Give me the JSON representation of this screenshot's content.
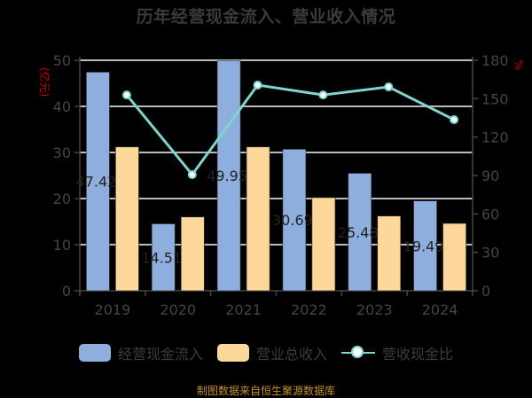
{
  "title": "历年经营现金流入、营业收入情况",
  "source": "制图数据来自恒生聚源数据库",
  "colors": {
    "cash_inflow": "#8eaedd",
    "revenue": "#fdd89a",
    "ratio_line": "#7fd4d0",
    "grid": "#bbbbbb",
    "axis": "#444444",
    "unit": "#d40000",
    "source": "#c8902a"
  },
  "axes": {
    "left_unit": "(亿元)",
    "right_unit": "%",
    "left_ticks": [
      "0",
      "10",
      "20",
      "30",
      "40",
      "50"
    ],
    "right_ticks": [
      "0",
      "30",
      "60",
      "90",
      "120",
      "150",
      "180"
    ]
  },
  "legend": {
    "items": [
      {
        "label": "经营现金流入",
        "type": "bar",
        "color": "#8eaedd"
      },
      {
        "label": "营业总收入",
        "type": "bar",
        "color": "#fdd89a"
      },
      {
        "label": "营收现金比",
        "type": "line",
        "color": "#7fd4d0"
      }
    ]
  },
  "chart_data": {
    "type": "bar",
    "title": "历年经营现金流入、营业收入情况",
    "categories": [
      "2019",
      "2020",
      "2021",
      "2022",
      "2023",
      "2024"
    ],
    "series": [
      {
        "name": "经营现金流入",
        "type": "bar",
        "axis": "left",
        "values": [
          47.42,
          14.51,
          49.95,
          30.69,
          25.48,
          19.49
        ],
        "labels": [
          "47.42",
          "14.51",
          "49.95",
          "30.69",
          "25.48",
          "19.49"
        ]
      },
      {
        "name": "营业总收入",
        "type": "bar",
        "axis": "left",
        "values": [
          31.2,
          16.0,
          31.2,
          20.2,
          16.2,
          14.6
        ]
      },
      {
        "name": "营收现金比",
        "type": "line",
        "axis": "right",
        "values": [
          152.9,
          90.7,
          160.6,
          152.9,
          159.2,
          133.6
        ]
      }
    ],
    "xlabel": "",
    "ylabel": "(亿元)",
    "y2label": "%",
    "ylim": [
      0,
      50
    ],
    "y2lim": [
      0,
      180
    ],
    "grid": true,
    "legend_position": "bottom"
  }
}
